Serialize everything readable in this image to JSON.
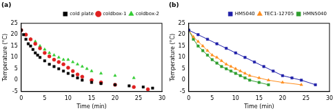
{
  "chart_data": [
    {
      "type": "scatter",
      "title": "(a)",
      "x_label": "Time (min)",
      "y_label": "Temperature (°C)",
      "xlim": [
        0,
        30
      ],
      "xticks": [
        0,
        5,
        10,
        15,
        20,
        25,
        30
      ],
      "ylim": [
        -5,
        25
      ],
      "yticks": [
        -5,
        0,
        5,
        10,
        15,
        20,
        25
      ],
      "grid": false,
      "legend": "upper right",
      "series": [
        {
          "name": "cold plate",
          "color": "#000000",
          "marker": "square",
          "x": [
            0,
            0.5,
            1,
            1.5,
            2,
            2.5,
            3,
            3.5,
            4,
            5,
            6,
            7,
            8,
            9,
            10,
            11,
            12,
            13,
            15,
            17,
            20,
            23,
            26,
            28
          ],
          "values": [
            22,
            20,
            18,
            16,
            15,
            13.5,
            12,
            11,
            10,
            8.5,
            7,
            6,
            5,
            4,
            3,
            2,
            1,
            0,
            -1,
            -1.5,
            -2,
            -2.5,
            -3,
            -3.5
          ]
        },
        {
          "name": "coldbox-1",
          "color": "#e02020",
          "marker": "circle",
          "x": [
            0,
            1,
            2,
            3,
            4,
            5,
            6,
            7,
            8,
            9,
            10,
            11,
            12,
            13,
            15,
            17,
            20,
            24,
            27
          ],
          "values": [
            22,
            20,
            18,
            16,
            14,
            12,
            10.5,
            9,
            8,
            7,
            5.5,
            4,
            2.5,
            1.5,
            0,
            -1,
            -2,
            -3,
            -4
          ]
        },
        {
          "name": "coldbox-2",
          "color": "#33cc33",
          "marker": "triangle",
          "x": [
            0,
            1,
            2,
            3,
            4,
            5,
            6,
            7,
            8,
            9,
            10,
            11,
            12,
            13,
            14,
            15,
            17,
            20,
            24
          ],
          "values": [
            22,
            20,
            18,
            17,
            15,
            13.5,
            12,
            11,
            10,
            9,
            9,
            8,
            7,
            6,
            5,
            4,
            3,
            2,
            1
          ]
        }
      ]
    },
    {
      "type": "line",
      "title": "(b)",
      "x_label": "Time (min)",
      "y_label": "Temperature (°C)",
      "xlim": [
        0,
        30
      ],
      "xticks": [
        0,
        5,
        10,
        15,
        20,
        25,
        30
      ],
      "ylim": [
        -5,
        25
      ],
      "yticks": [
        -5,
        0,
        5,
        10,
        15,
        20,
        25
      ],
      "grid": false,
      "legend": "upper right",
      "series": [
        {
          "name": "HM5040",
          "color": "#1f1fa8",
          "marker": "square",
          "line_style": "solid",
          "x": [
            0,
            2,
            4,
            6,
            8,
            10,
            12,
            14,
            16,
            18,
            20,
            22,
            24,
            27
          ],
          "values": [
            22,
            20,
            18,
            16,
            14,
            12,
            10,
            8,
            6,
            4,
            2,
            1,
            0,
            -2
          ]
        },
        {
          "name": "TEC1-12705",
          "color": "#ff8c1a",
          "marker": "triangle",
          "line_style": "solid",
          "x": [
            0,
            1,
            2,
            3,
            4,
            5,
            6,
            7,
            8,
            9,
            10,
            11,
            12,
            13,
            15,
            17,
            20,
            24
          ],
          "values": [
            22,
            19,
            17,
            15,
            13,
            11,
            10,
            8.5,
            7,
            6,
            5,
            4,
            3,
            2,
            1,
            0,
            -1,
            -2
          ]
        },
        {
          "name": "HMN5040",
          "color": "#2e9e2e",
          "marker": "square",
          "line_style": "solid",
          "x": [
            0,
            1,
            2,
            3,
            4,
            5,
            6,
            7,
            8,
            9,
            10,
            11,
            12,
            13,
            15,
            17
          ],
          "values": [
            22,
            18,
            15,
            13,
            11,
            9,
            7.5,
            6,
            5,
            4,
            3,
            2,
            1,
            0,
            -1,
            -2
          ]
        }
      ]
    }
  ]
}
